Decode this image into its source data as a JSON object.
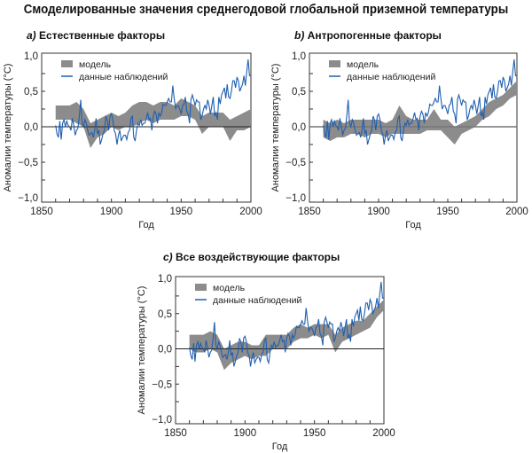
{
  "title": "Смоделированные значения среднегодовой глобальной приземной температуры",
  "chart_data": [
    {
      "type": "area",
      "panel": "a)",
      "title": "Естественные факторы",
      "xlabel": "Год",
      "ylabel": "Аномалии температуры (°C)",
      "xlim": [
        1850,
        2000
      ],
      "ylim": [
        -1.0,
        1.0
      ],
      "xticks": [
        "1850",
        "1900",
        "1950",
        "2000"
      ],
      "yticks": [
        "1,0",
        "0,5",
        "0,0",
        "−0,5",
        "−1,0"
      ],
      "legend": [
        "модель",
        "данные наблюдений"
      ],
      "legend_position": "top-left",
      "model_years": [
        1860,
        1865,
        1870,
        1875,
        1880,
        1885,
        1890,
        1895,
        1900,
        1905,
        1910,
        1915,
        1920,
        1925,
        1930,
        1935,
        1940,
        1945,
        1950,
        1955,
        1960,
        1965,
        1970,
        1975,
        1980,
        1985,
        1990,
        1995,
        2000
      ],
      "model_low": [
        0.1,
        0.1,
        0.1,
        0.05,
        0.0,
        -0.3,
        -0.15,
        -0.1,
        0.0,
        -0.05,
        0.0,
        0.0,
        0.05,
        0.1,
        0.05,
        0.1,
        0.1,
        0.1,
        0.15,
        0.15,
        0.1,
        -0.1,
        0.0,
        0.0,
        0.0,
        -0.2,
        -0.05,
        -0.05,
        0.0
      ],
      "model_high": [
        0.3,
        0.3,
        0.3,
        0.35,
        0.25,
        0.05,
        0.1,
        0.15,
        0.2,
        0.15,
        0.2,
        0.3,
        0.35,
        0.35,
        0.3,
        0.35,
        0.35,
        0.3,
        0.4,
        0.35,
        0.3,
        0.15,
        0.2,
        0.2,
        0.2,
        0.1,
        0.15,
        0.2,
        0.25
      ]
    },
    {
      "type": "area",
      "panel": "b)",
      "title": "Антропогенные факторы",
      "xlabel": "Год",
      "ylabel": "Аномалии температуры (°C)",
      "xlim": [
        1850,
        2000
      ],
      "ylim": [
        -1.0,
        1.0
      ],
      "xticks": [
        "1850",
        "1900",
        "1950",
        "2000"
      ],
      "yticks": [
        "1,0",
        "0,5",
        "0,0",
        "−0,5",
        "−1,0"
      ],
      "legend": [
        "модель",
        "данные наблюдений"
      ],
      "legend_position": "top-left",
      "model_years": [
        1860,
        1865,
        1870,
        1875,
        1880,
        1885,
        1890,
        1895,
        1900,
        1905,
        1910,
        1915,
        1920,
        1925,
        1930,
        1935,
        1940,
        1945,
        1950,
        1955,
        1960,
        1965,
        1970,
        1975,
        1980,
        1985,
        1990,
        1995,
        2000
      ],
      "model_low": [
        -0.15,
        -0.2,
        -0.15,
        -0.15,
        -0.1,
        -0.1,
        -0.15,
        -0.1,
        -0.1,
        -0.15,
        -0.1,
        -0.1,
        -0.1,
        -0.1,
        -0.1,
        -0.05,
        -0.05,
        -0.05,
        -0.15,
        -0.25,
        -0.1,
        -0.05,
        0.0,
        0.1,
        0.15,
        0.25,
        0.3,
        0.4,
        0.45
      ],
      "model_high": [
        0.1,
        0.05,
        0.1,
        0.05,
        0.1,
        0.1,
        0.1,
        0.1,
        0.1,
        0.05,
        0.1,
        0.3,
        0.15,
        0.1,
        0.1,
        0.1,
        0.25,
        0.1,
        0.1,
        0.0,
        0.05,
        0.1,
        0.15,
        0.25,
        0.35,
        0.4,
        0.45,
        0.55,
        0.65
      ]
    },
    {
      "type": "area",
      "panel": "c)",
      "title": "Все воздействующие факторы",
      "xlabel": "Год",
      "ylabel": "Аномалии температуры (°C)",
      "xlim": [
        1850,
        2000
      ],
      "ylim": [
        -1.0,
        1.0
      ],
      "xticks": [
        "1850",
        "1900",
        "1950",
        "2000"
      ],
      "yticks": [
        "1,0",
        "0,5",
        "0,0",
        "−0,5",
        "−1,0"
      ],
      "legend": [
        "модель",
        "данные наблюдений"
      ],
      "legend_position": "top-left",
      "model_years": [
        1860,
        1865,
        1870,
        1875,
        1880,
        1885,
        1890,
        1895,
        1900,
        1905,
        1910,
        1915,
        1920,
        1925,
        1930,
        1935,
        1940,
        1945,
        1950,
        1955,
        1960,
        1965,
        1970,
        1975,
        1980,
        1985,
        1990,
        1995,
        2000
      ],
      "model_low": [
        0.0,
        -0.05,
        -0.05,
        0.0,
        -0.05,
        -0.3,
        -0.2,
        -0.15,
        -0.1,
        -0.15,
        -0.1,
        -0.1,
        0.0,
        0.0,
        0.0,
        0.1,
        0.15,
        0.15,
        0.2,
        0.15,
        0.2,
        -0.05,
        0.1,
        0.15,
        0.2,
        0.25,
        0.3,
        0.45,
        0.55
      ],
      "model_high": [
        0.2,
        0.2,
        0.2,
        0.25,
        0.2,
        0.0,
        0.05,
        0.1,
        0.1,
        0.05,
        0.05,
        0.2,
        0.2,
        0.2,
        0.2,
        0.3,
        0.35,
        0.3,
        0.35,
        0.35,
        0.35,
        0.2,
        0.3,
        0.35,
        0.4,
        0.4,
        0.5,
        0.6,
        0.7
      ]
    }
  ],
  "observations": {
    "start_year": 1860,
    "values": [
      0.02,
      -0.1,
      -0.15,
      0.08,
      -0.18,
      0.05,
      0.1,
      0.0,
      0.08,
      0.02,
      0.0,
      -0.05,
      0.12,
      0.02,
      -0.12,
      -0.05,
      -0.02,
      0.15,
      0.38,
      0.05,
      0.0,
      0.1,
      0.05,
      -0.05,
      -0.12,
      -0.1,
      -0.08,
      -0.15,
      -0.05,
      0.12,
      -0.1,
      -0.05,
      -0.25,
      -0.18,
      -0.1,
      -0.05,
      0.15,
      0.1,
      -0.05,
      0.15,
      0.18,
      0.1,
      -0.05,
      -0.1,
      -0.25,
      -0.12,
      -0.05,
      -0.2,
      -0.15,
      -0.12,
      -0.12,
      -0.18,
      -0.08,
      -0.05,
      0.12,
      0.15,
      -0.15,
      -0.2,
      -0.05,
      0.05,
      0.02,
      0.1,
      0.02,
      0.05,
      0.05,
      0.12,
      0.2,
      0.1,
      0.12,
      -0.05,
      0.15,
      0.22,
      0.18,
      0.05,
      0.2,
      0.15,
      0.2,
      0.32,
      0.3,
      0.3,
      0.35,
      0.4,
      0.35,
      0.35,
      0.58,
      0.4,
      0.25,
      0.3,
      0.3,
      0.25,
      0.18,
      0.3,
      0.32,
      0.42,
      0.22,
      0.18,
      0.05,
      0.38,
      0.45,
      0.38,
      0.3,
      0.38,
      0.35,
      0.35,
      0.1,
      0.15,
      0.25,
      0.3,
      0.25,
      0.38,
      0.3,
      0.18,
      0.3,
      0.42,
      0.15,
      0.2,
      0.1,
      0.42,
      0.32,
      0.45,
      0.5,
      0.55,
      0.4,
      0.6,
      0.42,
      0.4,
      0.5,
      0.65,
      0.65,
      0.55,
      0.7,
      0.65,
      0.5,
      0.55,
      0.6,
      0.72,
      0.58,
      0.78,
      0.95,
      0.72,
      0.72
    ]
  },
  "colors": {
    "model": "#8c8c8c",
    "observations": "#1f5fb0",
    "zero_line": "#222222"
  }
}
